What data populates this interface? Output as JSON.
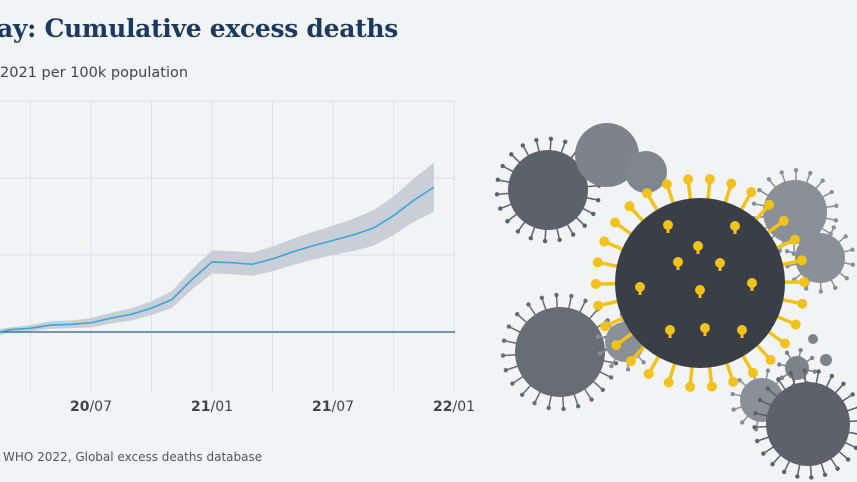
{
  "title": "ay: Cumulative excess deaths",
  "subtitle": "2021 per 100k population",
  "source": "WHO 2022, Global excess deaths database",
  "colors": {
    "line": "#3fa3e0",
    "band": "#c8cfd6",
    "baseline": "#2b5c86",
    "title": "#1b3a5e",
    "virus_main": "#3a3f47",
    "virus_spikes": "#f1c21b",
    "virus_gray": "#6a7078"
  },
  "chart_data": {
    "type": "line",
    "title": "",
    "xlabel": "",
    "ylabel": "",
    "grid": true,
    "x_tick_labels": [
      {
        "bold": "20",
        "rest": "/07"
      },
      {
        "bold": "21",
        "rest": "/01"
      },
      {
        "bold": "21",
        "rest": "/07"
      },
      {
        "bold": "22",
        "rest": "/01"
      }
    ],
    "x": [
      "2020-03",
      "2020-04",
      "2020-05",
      "2020-06",
      "2020-07",
      "2020-08",
      "2020-09",
      "2020-10",
      "2020-11",
      "2020-12",
      "2021-01",
      "2021-02",
      "2021-03",
      "2021-04",
      "2021-05",
      "2021-06",
      "2021-07",
      "2021-08",
      "2021-09",
      "2021-10",
      "2021-11",
      "2021-12"
    ],
    "series": [
      {
        "values": [
          0.03,
          0.05,
          0.09,
          0.1,
          0.12,
          0.18,
          0.23,
          0.31,
          0.42,
          0.68,
          0.91,
          0.9,
          0.88,
          0.95,
          1.04,
          1.12,
          1.19,
          1.26,
          1.35,
          1.51,
          1.71,
          1.88
        ],
        "uncertainty": [
          0.03,
          0.04,
          0.05,
          0.05,
          0.06,
          0.07,
          0.08,
          0.09,
          0.11,
          0.13,
          0.15,
          0.15,
          0.15,
          0.16,
          0.17,
          0.18,
          0.19,
          0.21,
          0.23,
          0.25,
          0.28,
          0.32
        ]
      }
    ],
    "y_note": "y axis tick labels not visible (cropped)"
  }
}
